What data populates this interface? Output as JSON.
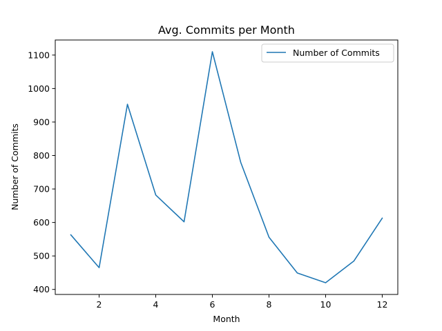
{
  "chart_data": {
    "type": "line",
    "title": "Avg. Commits per Month",
    "xlabel": "Month",
    "ylabel": "Number of Commits",
    "x": [
      1,
      2,
      3,
      4,
      5,
      6,
      7,
      8,
      9,
      10,
      11,
      12
    ],
    "series": [
      {
        "name": "Number of Commits",
        "color": "#1f77b4",
        "values": [
          563,
          465,
          953,
          682,
          602,
          1110,
          780,
          556,
          449,
          420,
          485,
          613
        ]
      }
    ],
    "xlim": [
      0.45,
      12.55
    ],
    "ylim": [
      385,
      1145
    ],
    "xticks": [
      2,
      4,
      6,
      8,
      10,
      12
    ],
    "yticks": [
      400,
      500,
      600,
      700,
      800,
      900,
      1000,
      1100
    ],
    "grid": false,
    "legend_position": "upper right"
  }
}
